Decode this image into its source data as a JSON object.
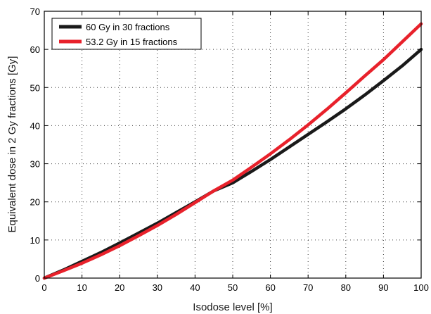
{
  "chart_data": {
    "type": "line",
    "title": "",
    "xlabel": "Isodose level [%]",
    "ylabel": "Equivalent dose in 2 Gy fractions [Gy]",
    "xlim": [
      0,
      100
    ],
    "ylim": [
      0,
      70
    ],
    "xticks": [
      0,
      10,
      20,
      30,
      40,
      50,
      60,
      70,
      80,
      90,
      100
    ],
    "yticks": [
      0,
      10,
      20,
      30,
      40,
      50,
      60,
      70
    ],
    "grid": true,
    "legend_position": "top-left",
    "series": [
      {
        "name": "60 Gy in 30 fractions",
        "color": "#1a1a1a",
        "x": [
          0,
          5,
          10,
          15,
          20,
          25,
          30,
          35,
          40,
          45,
          50,
          55,
          60,
          65,
          70,
          75,
          80,
          85,
          90,
          95,
          100
        ],
        "y": [
          0,
          2.1,
          4.4,
          6.7,
          9.2,
          11.8,
          14.4,
          17.2,
          20.0,
          22.9,
          25.0,
          28.0,
          31.1,
          34.4,
          37.7,
          41.0,
          44.4,
          48.0,
          51.8,
          55.7,
          60.0
        ]
      },
      {
        "name": "53.2 Gy in 15 fractions",
        "color": "#e8212b",
        "x": [
          0,
          5,
          10,
          15,
          20,
          25,
          30,
          35,
          40,
          45,
          50,
          55,
          60,
          65,
          70,
          75,
          80,
          85,
          90,
          95,
          100
        ],
        "y": [
          0,
          1.9,
          3.9,
          6.1,
          8.5,
          11.1,
          13.8,
          16.7,
          19.8,
          22.9,
          25.7,
          29.1,
          32.6,
          36.3,
          40.2,
          44.3,
          48.6,
          53.0,
          57.3,
          62.0,
          66.7
        ]
      }
    ]
  }
}
